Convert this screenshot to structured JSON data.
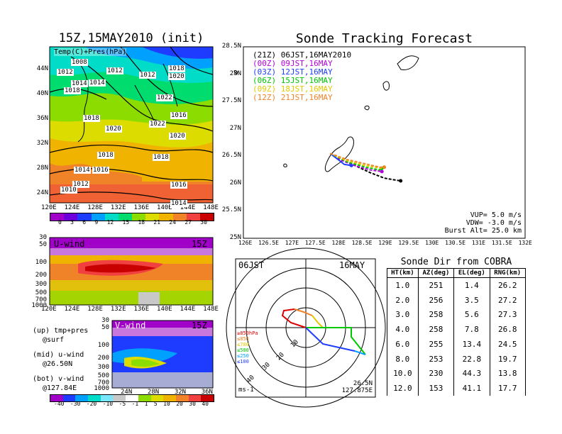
{
  "map_panel": {
    "title": "15Z,15MAY2010 (init)",
    "field_label": "Temp(C)+Pres(hPa)",
    "lat_labels": [
      "44N",
      "40N",
      "36N",
      "32N",
      "28N",
      "24N"
    ],
    "lon_labels": [
      "120E",
      "124E",
      "128E",
      "132E",
      "136E",
      "140E",
      "144E",
      "148E"
    ],
    "isobar_labels": [
      "1008",
      "1012",
      "1012",
      "1012",
      "1014",
      "1018",
      "1018",
      "1020",
      "1014",
      "1022",
      "1016",
      "1018",
      "1020",
      "1022",
      "1020",
      "1018",
      "1018",
      "1014",
      "1016",
      "1012",
      "1010",
      "1016",
      "1014"
    ],
    "colorbar_ticks": [
      "0",
      "3",
      "6",
      "9",
      "12",
      "15",
      "18",
      "21",
      "24",
      "27",
      "30"
    ],
    "colorbar_colors": [
      "#a000c8",
      "#6e00dc",
      "#1e3cff",
      "#00a0ff",
      "#00dcc8",
      "#00dc6e",
      "#8cdc00",
      "#dcdc00",
      "#f0b400",
      "#f08228",
      "#f04040",
      "#c80000"
    ]
  },
  "uwind_panel": {
    "label": "U-wind",
    "time": "15Z",
    "y_labels": [
      "30",
      "50",
      "100",
      "200",
      "300",
      "500",
      "700",
      "1000"
    ],
    "x_labels": [
      "120E",
      "124E",
      "128E",
      "132E",
      "136E",
      "140E",
      "144E",
      "148E"
    ]
  },
  "vwind_panel": {
    "label": "V-wind",
    "time": "15Z",
    "y_labels": [
      "30",
      "50",
      "100",
      "200",
      "300",
      "500",
      "700",
      "1000"
    ],
    "x_labels": [
      "24N",
      "28N",
      "32N",
      "36N"
    ]
  },
  "legend_notes": {
    "up1": "(up) tmp+pres",
    "up2": "@surf",
    "mid1": "(mid) u-wind",
    "mid2": "@26.50N",
    "bot1": "(bot) v-wind",
    "bot2": "@127.84E"
  },
  "wind_colorbar": {
    "ticks": [
      "-40",
      "-30",
      "-20",
      "-10",
      "-5",
      "-1",
      "1",
      "5",
      "10",
      "20",
      "30",
      "40"
    ],
    "colors": [
      "#a000c8",
      "#1e3cff",
      "#00a0ff",
      "#00dcc8",
      "#78e6ff",
      "#c8c8c8",
      "#ffffff",
      "#8cdc00",
      "#dcdc00",
      "#f0b400",
      "#f08228",
      "#f04040",
      "#c80000"
    ]
  },
  "tracking": {
    "title": "Sonde Tracking Forecast",
    "lat_labels": [
      "28.5N",
      "28N",
      "27.5N",
      "27N",
      "26.5N",
      "26N",
      "25.5N",
      "25N"
    ],
    "lon_labels": [
      "126E",
      "126.5E",
      "127E",
      "127.5E",
      "128E",
      "128.5E",
      "129E",
      "129.5E",
      "130E",
      "130.5E",
      "131E",
      "131.5E",
      "132E"
    ],
    "legend": [
      {
        "text": "(21Z) 06JST,16MAY2010",
        "color": "#000000"
      },
      {
        "text": "(00Z) 09JST,16MAY",
        "color": "#b400dc"
      },
      {
        "text": "(03Z) 12JST,16MAY",
        "color": "#1e3cff"
      },
      {
        "text": "(06Z) 15JST,16MAY",
        "color": "#00c800"
      },
      {
        "text": "(09Z) 18JST,16MAY",
        "color": "#e6c800"
      },
      {
        "text": "(12Z) 21JST,16MAY",
        "color": "#f08228"
      }
    ],
    "vup": "VUP= 5.0 m/s",
    "vdw": "VDW= -3.0 m/s",
    "burst": "Burst Alt= 25.0 km"
  },
  "polar": {
    "time_label": "06JST",
    "date_label": "16MAY",
    "ring_labels": [
      "10",
      "20",
      "30",
      "40"
    ],
    "legend": [
      {
        "text": "≥850hPa",
        "color": "#dc0000"
      },
      {
        "text": "≤850",
        "color": "#f08228"
      },
      {
        "text": "≤700",
        "color": "#e6c800"
      },
      {
        "text": "≤500",
        "color": "#00c800"
      },
      {
        "text": "≤250",
        "color": "#00a0ff"
      },
      {
        "text": "≤100",
        "color": "#1e3cff"
      }
    ],
    "unit": "ms-1",
    "lat": "26.5N",
    "lon": "127.875E"
  },
  "sonde_table": {
    "title": "Sonde Dir from COBRA",
    "headers": [
      "HT(km)",
      "AZ(deg)",
      "EL(deg)",
      "RNG(km)"
    ],
    "rows": [
      [
        "1.0",
        "251",
        "1.4",
        "26.2"
      ],
      [
        "2.0",
        "256",
        "3.5",
        "27.2"
      ],
      [
        "3.0",
        "258",
        "5.6",
        "27.3"
      ],
      [
        "4.0",
        "258",
        "7.8",
        "26.8"
      ],
      [
        "6.0",
        "255",
        "13.4",
        "24.5"
      ],
      [
        "8.0",
        "253",
        "22.8",
        "19.7"
      ],
      [
        "10.0",
        "230",
        "44.3",
        "13.8"
      ],
      [
        "12.0",
        "153",
        "41.1",
        "17.7"
      ]
    ]
  },
  "chart_data": [
    {
      "type": "heatmap",
      "title": "15Z,15MAY2010 (init)",
      "xlabel": "",
      "ylabel": "",
      "x_ticks": [
        "120E",
        "124E",
        "128E",
        "132E",
        "136E",
        "140E",
        "144E",
        "148E"
      ],
      "y_ticks": [
        "24N",
        "28N",
        "32N",
        "36N",
        "40N",
        "44N"
      ],
      "colorbar": [
        0,
        3,
        6,
        9,
        12,
        15,
        18,
        21,
        24,
        27,
        30
      ]
    },
    {
      "type": "line",
      "title": "Sonde Tracking Forecast",
      "xlabel": "",
      "ylabel": "",
      "xlim": [
        126,
        132
      ],
      "ylim": [
        25,
        28.5
      ],
      "series": [
        {
          "name": "(21Z) 06JST,16MAY2010",
          "x": [
            127.85,
            128.1,
            128.4,
            128.7,
            129.0,
            129.2,
            129.35
          ],
          "y": [
            26.55,
            26.45,
            26.32,
            26.2,
            26.1,
            26.07,
            26.05
          ]
        },
        {
          "name": "(00Z) 09JST,16MAY",
          "x": [
            127.85,
            128.1,
            128.4,
            128.7,
            128.95
          ],
          "y": [
            26.55,
            26.42,
            26.32,
            26.25,
            26.22
          ]
        },
        {
          "name": "(03Z) 12JST,16MAY",
          "x": [
            127.85,
            128.0,
            128.15,
            128.3
          ],
          "y": [
            26.55,
            26.45,
            26.35,
            26.33
          ]
        },
        {
          "name": "(06Z) 15JST,16MAY",
          "x": [
            127.85,
            128.2,
            128.6,
            128.9,
            128.95
          ],
          "y": [
            26.55,
            26.4,
            26.3,
            26.25,
            26.28
          ]
        },
        {
          "name": "(09Z) 18JST,16MAY",
          "x": [
            127.85,
            128.2,
            128.6,
            128.95,
            129.0
          ],
          "y": [
            26.55,
            26.42,
            26.33,
            26.28,
            26.3
          ]
        },
        {
          "name": "(12Z) 21JST,16MAY",
          "x": [
            127.85,
            128.2,
            128.6,
            128.9,
            129.0
          ],
          "y": [
            26.55,
            26.44,
            26.36,
            26.3,
            26.3
          ]
        }
      ]
    },
    {
      "type": "table",
      "title": "Sonde Dir from COBRA",
      "columns": [
        "HT(km)",
        "AZ(deg)",
        "EL(deg)",
        "RNG(km)"
      ],
      "rows": [
        [
          1.0,
          251,
          1.4,
          26.2
        ],
        [
          2.0,
          256,
          3.5,
          27.2
        ],
        [
          3.0,
          258,
          5.6,
          27.3
        ],
        [
          4.0,
          258,
          7.8,
          26.8
        ],
        [
          6.0,
          255,
          13.4,
          24.5
        ],
        [
          8.0,
          253,
          22.8,
          19.7
        ],
        [
          10.0,
          230,
          44.3,
          13.8
        ],
        [
          12.0,
          153,
          41.1,
          17.7
        ]
      ]
    }
  ]
}
